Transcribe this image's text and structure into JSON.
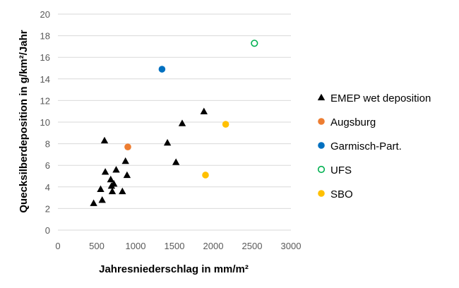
{
  "chart_data": {
    "type": "scatter",
    "xlabel": "Jahresniederschlag in mm/m²",
    "ylabel": "Quecksilberdeposition in g/km²/Jahr",
    "xlim": [
      0,
      3000
    ],
    "ylim": [
      0,
      20
    ],
    "xticks": [
      0,
      500,
      1000,
      1500,
      2000,
      2500,
      3000
    ],
    "yticks": [
      0,
      2,
      4,
      6,
      8,
      10,
      12,
      14,
      16,
      18,
      20
    ],
    "grid": "horizontal",
    "legend_position": "right",
    "series": [
      {
        "name": "EMEP wet deposition",
        "marker": "triangle",
        "color": "#000000",
        "points": [
          {
            "x": 460,
            "y": 2.5
          },
          {
            "x": 550,
            "y": 3.8
          },
          {
            "x": 570,
            "y": 2.8
          },
          {
            "x": 600,
            "y": 8.3
          },
          {
            "x": 610,
            "y": 5.4
          },
          {
            "x": 680,
            "y": 4.7
          },
          {
            "x": 690,
            "y": 4.1
          },
          {
            "x": 700,
            "y": 3.6
          },
          {
            "x": 720,
            "y": 4.3
          },
          {
            "x": 750,
            "y": 5.6
          },
          {
            "x": 830,
            "y": 3.6
          },
          {
            "x": 870,
            "y": 6.4
          },
          {
            "x": 890,
            "y": 5.1
          },
          {
            "x": 1410,
            "y": 8.1
          },
          {
            "x": 1520,
            "y": 6.3
          },
          {
            "x": 1600,
            "y": 9.9
          },
          {
            "x": 1880,
            "y": 11.0
          }
        ]
      },
      {
        "name": "Augsburg",
        "marker": "circle",
        "color": "#ed7d31",
        "points": [
          {
            "x": 900,
            "y": 7.7
          }
        ]
      },
      {
        "name": "Garmisch-Part.",
        "marker": "circle",
        "color": "#0070c0",
        "points": [
          {
            "x": 1340,
            "y": 14.9
          }
        ]
      },
      {
        "name": "UFS",
        "marker": "circle-open",
        "color": "#00b050",
        "points": [
          {
            "x": 2530,
            "y": 17.3
          }
        ]
      },
      {
        "name": "SBO",
        "marker": "circle",
        "color": "#ffc000",
        "points": [
          {
            "x": 2160,
            "y": 9.8
          },
          {
            "x": 1900,
            "y": 5.1
          }
        ]
      }
    ]
  }
}
